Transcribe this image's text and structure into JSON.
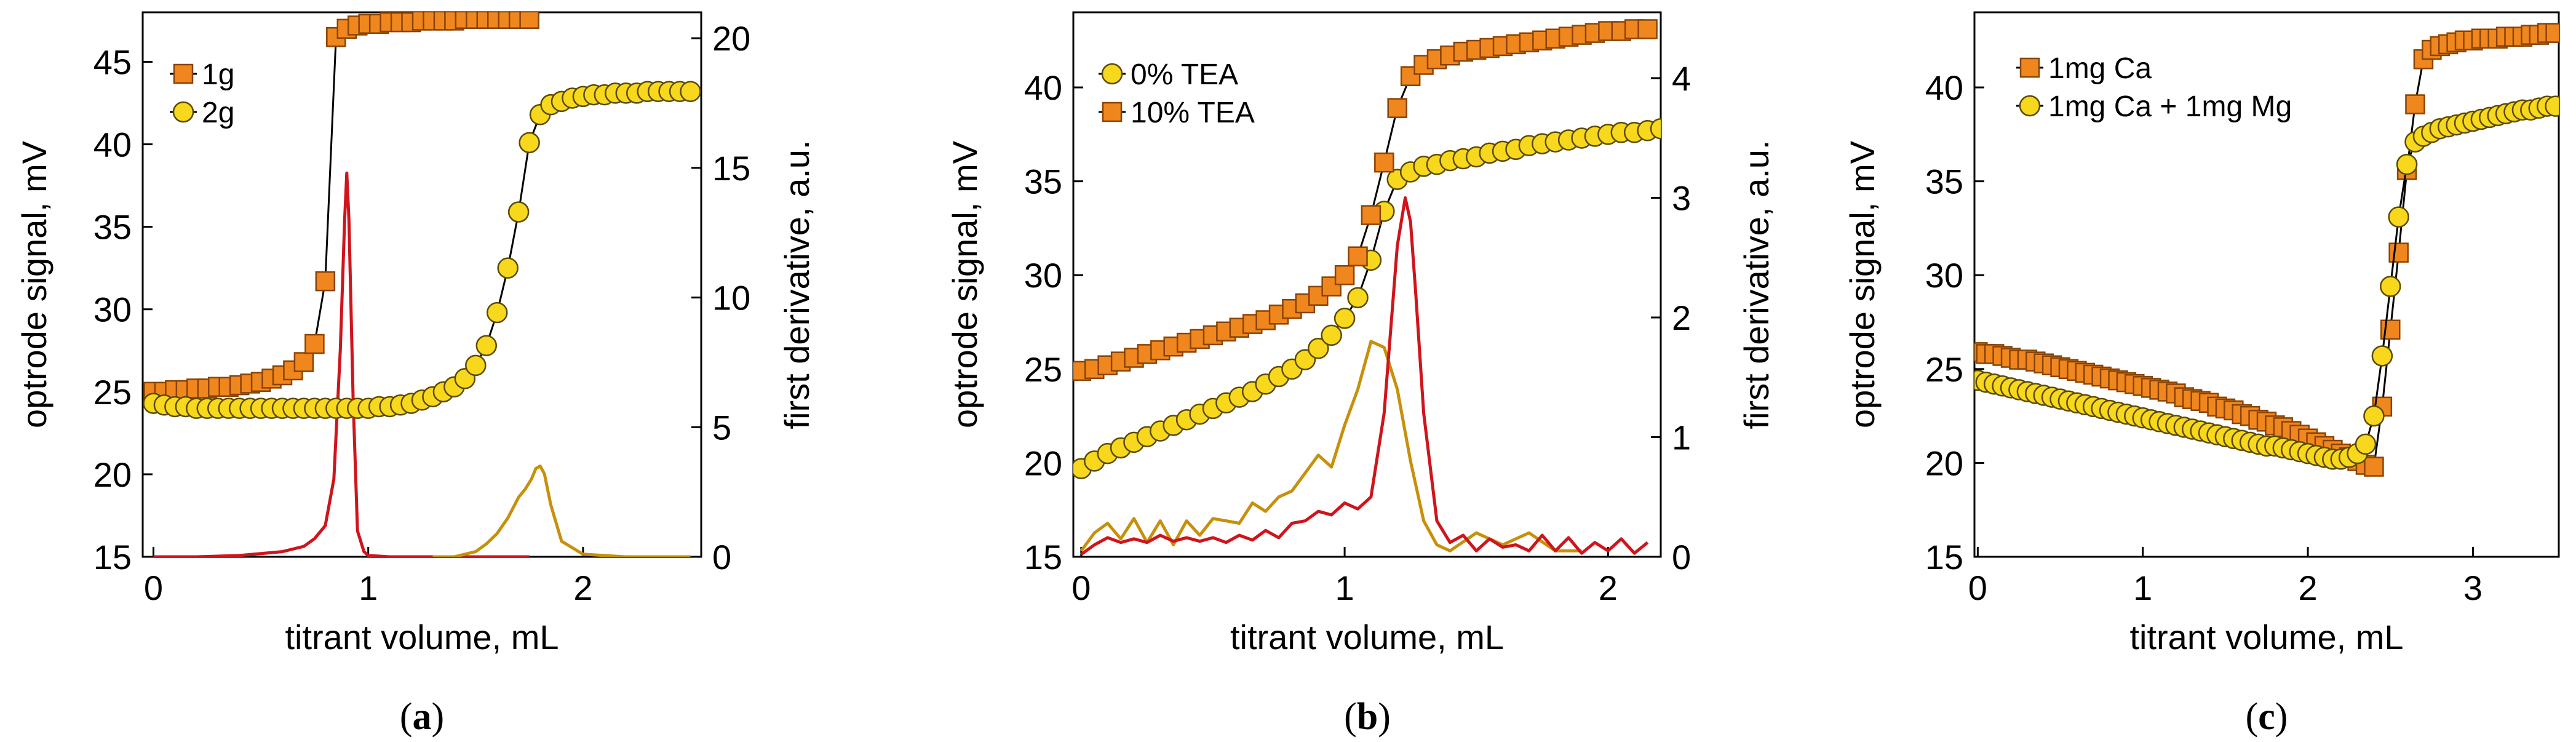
{
  "chart_data": [
    {
      "type": "line",
      "caption": "a",
      "xlabel": "titrant volume, mL",
      "ylabel": "optrode signal, mV",
      "y2label": "first derivative, a.u.",
      "xlim": [
        -0.05,
        2.55
      ],
      "ylim": [
        15,
        48
      ],
      "y2lim": [
        0,
        21
      ],
      "xticks": [
        0,
        1,
        2
      ],
      "yticks": [
        15,
        20,
        25,
        30,
        35,
        40,
        45
      ],
      "y2ticks": [
        0,
        5,
        10,
        15,
        20
      ],
      "legend_position": "top-left",
      "series": [
        {
          "name": "1g",
          "marker": "square",
          "fill": "#f0871e",
          "stroke": "#8a4300",
          "line": "#000000",
          "axis": "left",
          "x": [
            0,
            0.05,
            0.1,
            0.15,
            0.2,
            0.25,
            0.3,
            0.35,
            0.4,
            0.45,
            0.5,
            0.55,
            0.6,
            0.65,
            0.7,
            0.75,
            0.8,
            0.85,
            0.9,
            0.95,
            1.0,
            1.05,
            1.1,
            1.15,
            1.2,
            1.25,
            1.3,
            1.35,
            1.4,
            1.45,
            1.5,
            1.55,
            1.6,
            1.65,
            1.7,
            1.75
          ],
          "y": [
            25.0,
            25.0,
            25.1,
            25.1,
            25.2,
            25.2,
            25.3,
            25.3,
            25.4,
            25.5,
            25.6,
            25.8,
            26.0,
            26.3,
            26.8,
            27.9,
            31.7,
            46.5,
            47.0,
            47.2,
            47.3,
            47.3,
            47.4,
            47.4,
            47.4,
            47.5,
            47.5,
            47.5,
            47.5,
            47.6,
            47.6,
            47.6,
            47.6,
            47.6,
            47.6,
            47.6
          ]
        },
        {
          "name": "2g",
          "marker": "circle",
          "fill": "#f8d81c",
          "stroke": "#5a4a00",
          "line": "#000000",
          "axis": "left",
          "x": [
            0,
            0.05,
            0.1,
            0.15,
            0.2,
            0.25,
            0.3,
            0.35,
            0.4,
            0.45,
            0.5,
            0.55,
            0.6,
            0.65,
            0.7,
            0.75,
            0.8,
            0.85,
            0.9,
            0.95,
            1.0,
            1.05,
            1.1,
            1.15,
            1.2,
            1.25,
            1.3,
            1.35,
            1.4,
            1.45,
            1.5,
            1.55,
            1.6,
            1.65,
            1.7,
            1.75,
            1.8,
            1.85,
            1.9,
            1.95,
            2.0,
            2.05,
            2.1,
            2.15,
            2.2,
            2.25,
            2.3,
            2.35,
            2.4,
            2.45,
            2.5
          ],
          "y": [
            24.3,
            24.2,
            24.1,
            24.1,
            24.0,
            24.0,
            24.0,
            24.0,
            24.0,
            24.0,
            24.0,
            24.0,
            24.0,
            24.0,
            24.0,
            24.0,
            24.0,
            24.0,
            24.0,
            24.0,
            24.0,
            24.1,
            24.1,
            24.2,
            24.3,
            24.5,
            24.7,
            25.0,
            25.3,
            25.8,
            26.6,
            27.8,
            29.8,
            32.5,
            35.9,
            40.1,
            41.8,
            42.4,
            42.6,
            42.8,
            42.9,
            43.0,
            43.0,
            43.1,
            43.1,
            43.1,
            43.2,
            43.2,
            43.2,
            43.2,
            43.2
          ]
        },
        {
          "name": "1g derivative",
          "marker": "none",
          "line": "#d0141c",
          "axis": "right",
          "x": [
            0,
            0.2,
            0.4,
            0.6,
            0.7,
            0.75,
            0.8,
            0.84,
            0.87,
            0.89,
            0.9,
            0.91,
            0.93,
            0.95,
            0.98,
            1.0,
            1.1,
            1.3,
            1.5,
            1.75
          ],
          "y": [
            0,
            0,
            0.05,
            0.2,
            0.4,
            0.7,
            1.2,
            3.0,
            8.0,
            13.0,
            14.8,
            13.0,
            6.0,
            1.0,
            0.2,
            0.05,
            0,
            0,
            0,
            0
          ]
        },
        {
          "name": "2g derivative",
          "marker": "none",
          "line": "#c8900a",
          "axis": "right",
          "x": [
            1.3,
            1.4,
            1.5,
            1.55,
            1.6,
            1.65,
            1.7,
            1.73,
            1.76,
            1.78,
            1.8,
            1.82,
            1.85,
            1.9,
            2.0,
            2.2,
            2.5
          ],
          "y": [
            0,
            0,
            0.2,
            0.5,
            0.9,
            1.5,
            2.3,
            2.6,
            3.0,
            3.4,
            3.5,
            3.2,
            2.0,
            0.6,
            0.1,
            0,
            0
          ]
        }
      ]
    },
    {
      "type": "line",
      "caption": "b",
      "xlabel": "titrant volume, mL",
      "ylabel": "optrode signal, mV",
      "y2label": "first derivative, a.u.",
      "xlim": [
        -0.03,
        2.2
      ],
      "ylim": [
        15,
        44
      ],
      "y2lim": [
        0,
        4.55
      ],
      "xticks": [
        0,
        1,
        2
      ],
      "yticks": [
        15,
        20,
        25,
        30,
        35,
        40
      ],
      "y2ticks": [
        0,
        1,
        2,
        3,
        4
      ],
      "legend_position": "top-left",
      "series": [
        {
          "name": "0% TEA",
          "marker": "circle",
          "fill": "#f8d81c",
          "stroke": "#5a4a00",
          "line": "#000000",
          "axis": "left",
          "x": [
            0,
            0.05,
            0.1,
            0.15,
            0.2,
            0.25,
            0.3,
            0.35,
            0.4,
            0.45,
            0.5,
            0.55,
            0.6,
            0.65,
            0.7,
            0.75,
            0.8,
            0.85,
            0.9,
            0.95,
            1.0,
            1.05,
            1.1,
            1.15,
            1.2,
            1.25,
            1.3,
            1.35,
            1.4,
            1.45,
            1.5,
            1.55,
            1.6,
            1.65,
            1.7,
            1.75,
            1.8,
            1.85,
            1.9,
            1.95,
            2.0,
            2.05,
            2.1,
            2.15,
            2.2
          ],
          "y": [
            19.7,
            20.1,
            20.5,
            20.8,
            21.1,
            21.4,
            21.7,
            22.0,
            22.3,
            22.6,
            22.9,
            23.2,
            23.5,
            23.8,
            24.2,
            24.6,
            25.0,
            25.5,
            26.1,
            26.8,
            27.7,
            28.8,
            30.8,
            33.4,
            35.1,
            35.5,
            35.8,
            35.9,
            36.1,
            36.2,
            36.3,
            36.5,
            36.6,
            36.7,
            36.9,
            37.0,
            37.1,
            37.2,
            37.3,
            37.4,
            37.5,
            37.6,
            37.6,
            37.7,
            37.8
          ]
        },
        {
          "name": "10% TEA",
          "marker": "square",
          "fill": "#f0871e",
          "stroke": "#8a4300",
          "line": "#000000",
          "axis": "left",
          "x": [
            0,
            0.05,
            0.1,
            0.15,
            0.2,
            0.25,
            0.3,
            0.35,
            0.4,
            0.45,
            0.5,
            0.55,
            0.6,
            0.65,
            0.7,
            0.75,
            0.8,
            0.85,
            0.9,
            0.95,
            1.0,
            1.05,
            1.1,
            1.15,
            1.2,
            1.25,
            1.3,
            1.35,
            1.4,
            1.45,
            1.5,
            1.55,
            1.6,
            1.65,
            1.7,
            1.75,
            1.8,
            1.85,
            1.9,
            1.95,
            2.0,
            2.05,
            2.1,
            2.15
          ],
          "y": [
            24.9,
            25.0,
            25.2,
            25.4,
            25.6,
            25.8,
            26.0,
            26.2,
            26.4,
            26.6,
            26.8,
            27.0,
            27.2,
            27.4,
            27.6,
            27.9,
            28.2,
            28.5,
            28.9,
            29.4,
            30.0,
            31.0,
            33.2,
            36.0,
            38.9,
            40.6,
            41.2,
            41.5,
            41.7,
            41.9,
            42.0,
            42.1,
            42.2,
            42.3,
            42.4,
            42.5,
            42.6,
            42.7,
            42.8,
            42.9,
            43.0,
            43.0,
            43.1,
            43.1
          ]
        },
        {
          "name": "0% TEA derivative",
          "marker": "none",
          "line": "#c8900a",
          "axis": "right",
          "x": [
            0,
            0.05,
            0.1,
            0.15,
            0.2,
            0.25,
            0.3,
            0.35,
            0.4,
            0.45,
            0.5,
            0.55,
            0.6,
            0.65,
            0.7,
            0.75,
            0.8,
            0.85,
            0.9,
            0.95,
            1.0,
            1.05,
            1.1,
            1.15,
            1.2,
            1.25,
            1.3,
            1.35,
            1.4,
            1.5,
            1.6,
            1.7,
            1.8,
            1.9
          ],
          "y": [
            0.05,
            0.2,
            0.28,
            0.15,
            0.32,
            0.12,
            0.3,
            0.1,
            0.3,
            0.18,
            0.32,
            0.3,
            0.28,
            0.45,
            0.38,
            0.5,
            0.55,
            0.7,
            0.85,
            0.75,
            1.1,
            1.4,
            1.8,
            1.75,
            1.4,
            0.8,
            0.3,
            0.1,
            0.05,
            0.2,
            0.1,
            0.2,
            0.05,
            0.05
          ]
        },
        {
          "name": "10% TEA derivative",
          "marker": "none",
          "line": "#d0141c",
          "axis": "right",
          "x": [
            0,
            0.05,
            0.1,
            0.15,
            0.2,
            0.25,
            0.3,
            0.35,
            0.4,
            0.45,
            0.5,
            0.55,
            0.6,
            0.65,
            0.7,
            0.75,
            0.8,
            0.85,
            0.9,
            0.95,
            1.0,
            1.05,
            1.1,
            1.15,
            1.2,
            1.23,
            1.25,
            1.27,
            1.3,
            1.35,
            1.4,
            1.45,
            1.5,
            1.55,
            1.6,
            1.65,
            1.7,
            1.75,
            1.8,
            1.85,
            1.9,
            1.95,
            2.0,
            2.05,
            2.1,
            2.15
          ],
          "y": [
            0.02,
            0.1,
            0.16,
            0.12,
            0.15,
            0.12,
            0.18,
            0.13,
            0.16,
            0.13,
            0.16,
            0.12,
            0.18,
            0.14,
            0.22,
            0.16,
            0.28,
            0.3,
            0.38,
            0.35,
            0.45,
            0.4,
            0.5,
            1.2,
            2.6,
            3.0,
            2.8,
            2.2,
            1.2,
            0.3,
            0.12,
            0.18,
            0.05,
            0.15,
            0.08,
            0.1,
            0.05,
            0.18,
            0.05,
            0.16,
            0.03,
            0.12,
            0.05,
            0.15,
            0.03,
            0.12
          ]
        }
      ]
    },
    {
      "type": "line",
      "caption": "c",
      "xlabel": "titrant volume, mL",
      "ylabel": "optrode signal, mV",
      "xlim": [
        -0.02,
        3.52
      ],
      "ylim": [
        15,
        44
      ],
      "xticks": [
        0,
        1,
        2,
        3
      ],
      "yticks": [
        15,
        20,
        25,
        30,
        35,
        40
      ],
      "legend_position": "top-left",
      "series": [
        {
          "name": "1mg Ca",
          "marker": "square",
          "fill": "#f0871e",
          "stroke": "#8a4300",
          "line": "#000000",
          "axis": "left",
          "x": [
            0,
            0.05,
            0.1,
            0.15,
            0.2,
            0.25,
            0.3,
            0.35,
            0.4,
            0.45,
            0.5,
            0.55,
            0.6,
            0.65,
            0.7,
            0.75,
            0.8,
            0.85,
            0.9,
            0.95,
            1.0,
            1.05,
            1.1,
            1.15,
            1.2,
            1.25,
            1.3,
            1.35,
            1.4,
            1.45,
            1.5,
            1.55,
            1.6,
            1.65,
            1.7,
            1.75,
            1.8,
            1.85,
            1.9,
            1.95,
            2.0,
            2.05,
            2.1,
            2.15,
            2.2,
            2.25,
            2.3,
            2.35,
            2.4,
            2.45,
            2.5,
            2.55,
            2.6,
            2.65,
            2.7,
            2.75,
            2.8,
            2.85,
            2.9,
            2.95,
            3.0,
            3.05,
            3.1,
            3.15,
            3.2,
            3.25,
            3.3,
            3.35,
            3.4,
            3.45,
            3.5
          ],
          "y": [
            25.9,
            25.8,
            25.8,
            25.7,
            25.6,
            25.5,
            25.5,
            25.4,
            25.3,
            25.2,
            25.1,
            25.0,
            24.9,
            24.8,
            24.7,
            24.6,
            24.5,
            24.4,
            24.3,
            24.2,
            24.1,
            24.0,
            23.9,
            23.8,
            23.7,
            23.5,
            23.4,
            23.3,
            23.2,
            23.0,
            22.9,
            22.8,
            22.6,
            22.5,
            22.3,
            22.2,
            22.0,
            21.9,
            21.7,
            21.5,
            21.3,
            21.1,
            20.9,
            20.7,
            20.5,
            20.3,
            20.1,
            19.9,
            19.8,
            23.0,
            27.1,
            31.2,
            35.6,
            39.1,
            41.5,
            42.0,
            42.2,
            42.3,
            42.4,
            42.5,
            42.5,
            42.6,
            42.6,
            42.6,
            42.7,
            42.7,
            42.7,
            42.8,
            42.8,
            42.9,
            42.9
          ]
        },
        {
          "name": "1mg Ca + 1mg Mg",
          "marker": "circle",
          "fill": "#f8d81c",
          "stroke": "#5a4a00",
          "line": "#000000",
          "axis": "left",
          "x": [
            0,
            0.05,
            0.1,
            0.15,
            0.2,
            0.25,
            0.3,
            0.35,
            0.4,
            0.45,
            0.5,
            0.55,
            0.6,
            0.65,
            0.7,
            0.75,
            0.8,
            0.85,
            0.9,
            0.95,
            1.0,
            1.05,
            1.1,
            1.15,
            1.2,
            1.25,
            1.3,
            1.35,
            1.4,
            1.45,
            1.5,
            1.55,
            1.6,
            1.65,
            1.7,
            1.75,
            1.8,
            1.85,
            1.9,
            1.95,
            2.0,
            2.05,
            2.1,
            2.15,
            2.2,
            2.25,
            2.3,
            2.35,
            2.4,
            2.45,
            2.5,
            2.55,
            2.6,
            2.65,
            2.7,
            2.75,
            2.8,
            2.85,
            2.9,
            2.95,
            3.0,
            3.05,
            3.1,
            3.15,
            3.2,
            3.25,
            3.3,
            3.35,
            3.4,
            3.45,
            3.5
          ],
          "y": [
            24.4,
            24.3,
            24.2,
            24.1,
            24.0,
            23.9,
            23.8,
            23.7,
            23.6,
            23.5,
            23.4,
            23.3,
            23.2,
            23.1,
            23.0,
            22.9,
            22.8,
            22.7,
            22.6,
            22.5,
            22.4,
            22.3,
            22.2,
            22.1,
            22.0,
            21.9,
            21.8,
            21.7,
            21.6,
            21.5,
            21.4,
            21.3,
            21.2,
            21.1,
            21.0,
            20.9,
            20.9,
            20.8,
            20.7,
            20.6,
            20.5,
            20.4,
            20.3,
            20.2,
            20.2,
            20.3,
            20.5,
            21.0,
            22.5,
            25.7,
            29.4,
            33.1,
            35.9,
            37.1,
            37.4,
            37.6,
            37.8,
            37.9,
            38.0,
            38.1,
            38.2,
            38.3,
            38.4,
            38.5,
            38.6,
            38.7,
            38.8,
            38.8,
            38.9,
            39.0,
            39.0
          ]
        }
      ]
    }
  ]
}
